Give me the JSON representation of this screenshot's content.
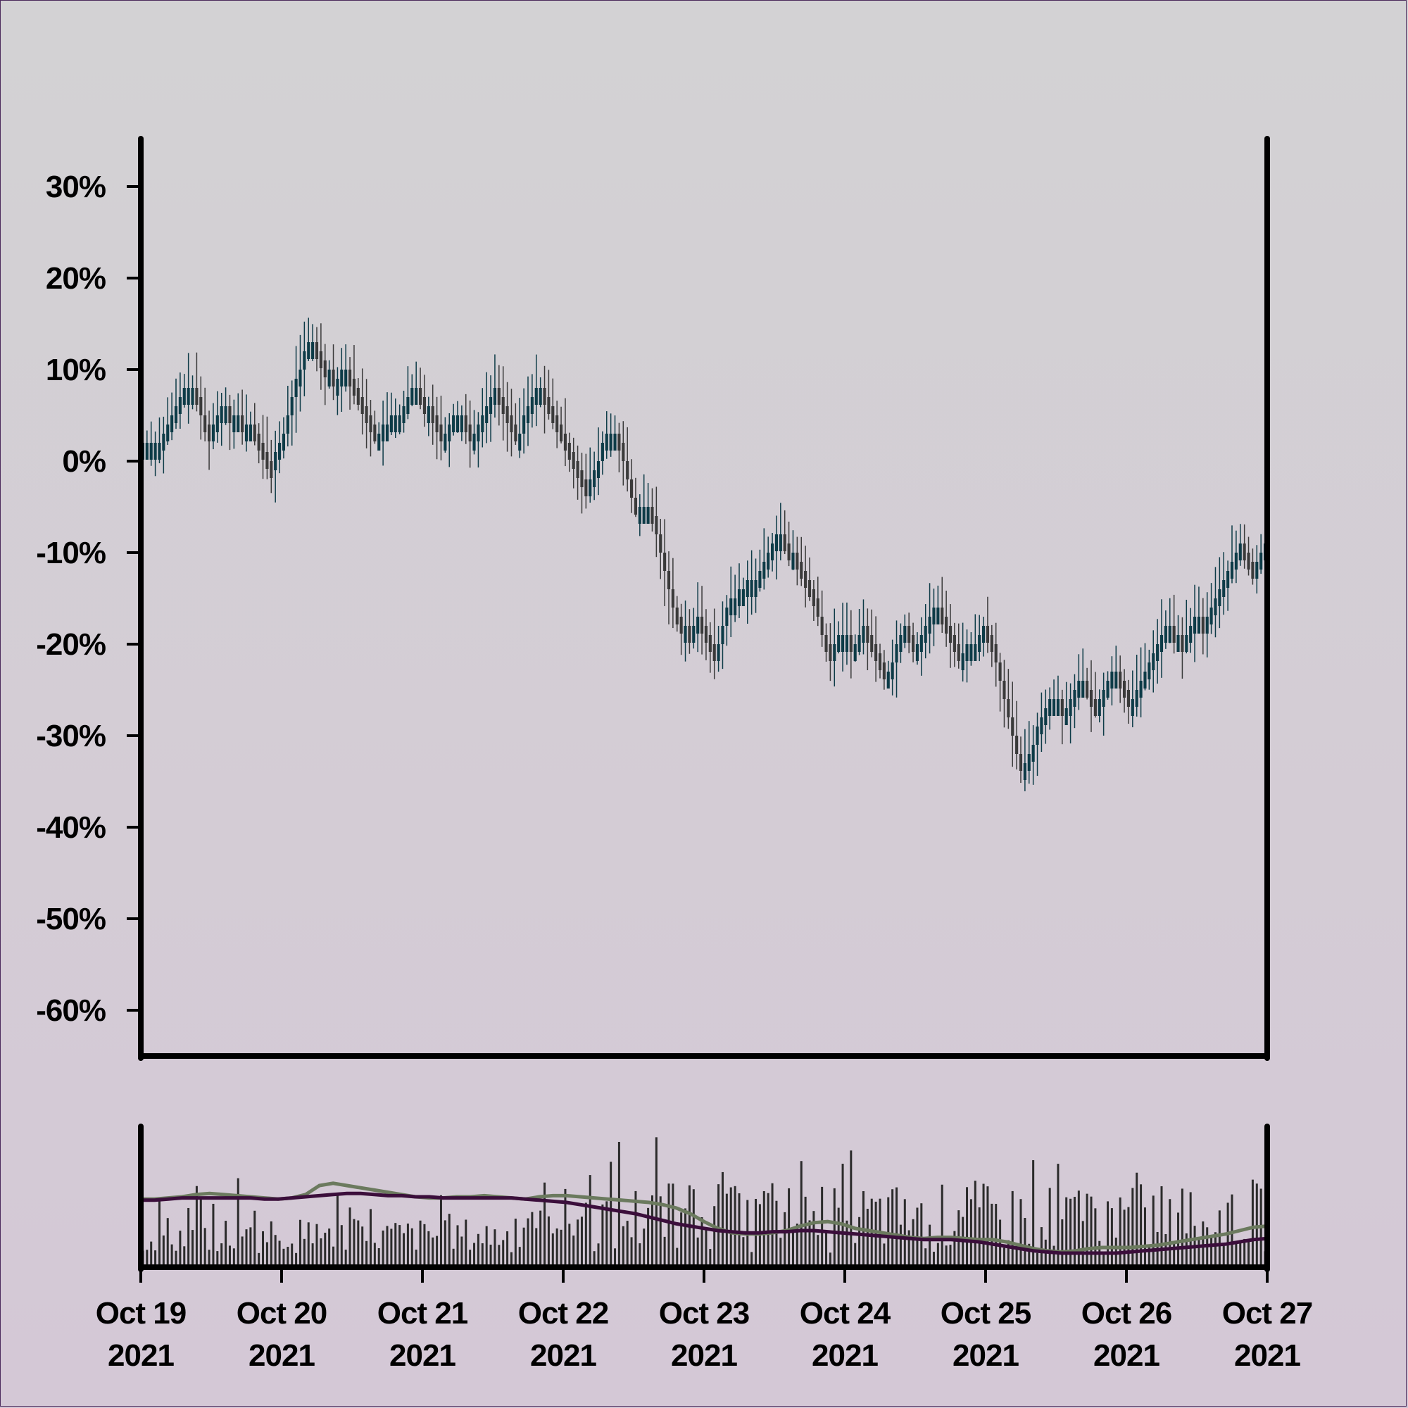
{
  "chart_data": [
    {
      "type": "candlestick",
      "title": "",
      "xlabel": "",
      "ylabel": "",
      "y_unit": "%",
      "ylim": [
        -65,
        35
      ],
      "yticks": [
        30,
        20,
        10,
        0,
        -10,
        -20,
        -30,
        -40,
        -50,
        -60
      ],
      "ytick_labels": [
        "30%",
        "20%",
        "10%",
        "0%",
        "-10%",
        "-20%",
        "-30%",
        "-40%",
        "-50%",
        "-60%"
      ],
      "xlim": [
        "2021-10-19 00:00",
        "2021-10-27 00:00"
      ],
      "xtick_labels": [
        {
          "line1": "Oct 19",
          "line2": "2021"
        },
        {
          "line1": "Oct 20",
          "line2": "2021"
        },
        {
          "line1": "Oct 21",
          "line2": "2021"
        },
        {
          "line1": "Oct 22",
          "line2": "2021"
        },
        {
          "line1": "Oct 23",
          "line2": "2021"
        },
        {
          "line1": "Oct 24",
          "line2": "2021"
        },
        {
          "line1": "Oct 25",
          "line2": "2021"
        },
        {
          "line1": "Oct 26",
          "line2": "2021"
        },
        {
          "line1": "Oct 27",
          "line2": "2021"
        }
      ],
      "bar_interval_hours": 1,
      "close_path_pct": [
        2,
        2,
        2,
        2,
        2,
        3,
        4,
        5,
        6,
        7,
        8,
        8,
        8,
        7,
        5,
        4,
        3,
        4,
        5,
        6,
        6,
        5,
        5,
        5,
        4,
        4,
        4,
        3,
        2,
        1,
        0,
        -1,
        1,
        2,
        3,
        5,
        7,
        9,
        10,
        12,
        13,
        13,
        12,
        11,
        10,
        10,
        9,
        9,
        10,
        10,
        9,
        8,
        7,
        6,
        5,
        4,
        3,
        3,
        4,
        4,
        5,
        5,
        5,
        6,
        7,
        8,
        8,
        7,
        6,
        6,
        5,
        4,
        3,
        3,
        4,
        5,
        5,
        5,
        4,
        3,
        3,
        4,
        5,
        6,
        7,
        8,
        7,
        6,
        5,
        4,
        3,
        3,
        5,
        6,
        7,
        8,
        8,
        7,
        6,
        5,
        4,
        3,
        2,
        1,
        0,
        -1,
        -2,
        -3,
        -2,
        -1,
        0,
        2,
        3,
        3,
        3,
        2,
        0,
        -2,
        -4,
        -5,
        -5,
        -5,
        -5,
        -6,
        -8,
        -10,
        -12,
        -14,
        -16,
        -17,
        -18,
        -18,
        -19,
        -18,
        -17,
        -18,
        -19,
        -20,
        -21,
        -20,
        -18,
        -16,
        -15,
        -15,
        -14,
        -14,
        -13,
        -13,
        -13,
        -12,
        -11,
        -10,
        -9,
        -8,
        -8,
        -9,
        -10,
        -10,
        -11,
        -12,
        -13,
        -14,
        -15,
        -17,
        -19,
        -20,
        -21,
        -20,
        -19,
        -19,
        -19,
        -20,
        -20,
        -19,
        -18,
        -19,
        -20,
        -21,
        -22,
        -23,
        -23,
        -22,
        -20,
        -19,
        -18,
        -19,
        -20,
        -20,
        -19,
        -18,
        -17,
        -16,
        -16,
        -17,
        -18,
        -19,
        -20,
        -21,
        -21,
        -20,
        -20,
        -20,
        -19,
        -18,
        -19,
        -20,
        -22,
        -24,
        -26,
        -28,
        -30,
        -32,
        -33,
        -33,
        -32,
        -31,
        -29,
        -28,
        -27,
        -26,
        -26,
        -26,
        -27,
        -27,
        -26,
        -25,
        -24,
        -24,
        -25,
        -26,
        -27,
        -26,
        -25,
        -24,
        -23,
        -23,
        -24,
        -25,
        -26,
        -26,
        -25,
        -24,
        -23,
        -22,
        -21,
        -20,
        -19,
        -18,
        -18,
        -19,
        -19,
        -20,
        -19,
        -18,
        -17,
        -17,
        -18,
        -17,
        -16,
        -15,
        -14,
        -13,
        -12,
        -11,
        -10,
        -9,
        -10,
        -11,
        -12,
        -11,
        -10,
        -9
      ]
    },
    {
      "type": "bar+line",
      "title": "",
      "xlabel": "",
      "ylabel": "",
      "description_of_series": "Volume bars with two moving-average lines (no legend printed)",
      "series": [
        {
          "color": "#2b2b2b",
          "kind": "bars"
        },
        {
          "color": "#6b7a5e",
          "kind": "line"
        },
        {
          "color": "#3b0e3b",
          "kind": "line"
        }
      ],
      "ma_fast_path": [
        0.48,
        0.48,
        0.49,
        0.5,
        0.52,
        0.53,
        0.52,
        0.51,
        0.5,
        0.49,
        0.48,
        0.49,
        0.52,
        0.6,
        0.62,
        0.6,
        0.58,
        0.56,
        0.54,
        0.52,
        0.5,
        0.49,
        0.49,
        0.5,
        0.5,
        0.51,
        0.5,
        0.49,
        0.48,
        0.5,
        0.51,
        0.51,
        0.5,
        0.49,
        0.48,
        0.47,
        0.46,
        0.45,
        0.43,
        0.4,
        0.35,
        0.28,
        0.22,
        0.18,
        0.17,
        0.17,
        0.18,
        0.2,
        0.24,
        0.27,
        0.28,
        0.26,
        0.22,
        0.2,
        0.18,
        0.16,
        0.14,
        0.13,
        0.14,
        0.14,
        0.13,
        0.12,
        0.12,
        0.1,
        0.07,
        0.04,
        0.02,
        0.01,
        0.02,
        0.04,
        0.05,
        0.05,
        0.05,
        0.06,
        0.07,
        0.09,
        0.11,
        0.13,
        0.15,
        0.17,
        0.2,
        0.23,
        0.24
      ],
      "ma_slow_path": [
        0.47,
        0.47,
        0.48,
        0.49,
        0.49,
        0.49,
        0.49,
        0.49,
        0.49,
        0.48,
        0.48,
        0.49,
        0.5,
        0.51,
        0.52,
        0.53,
        0.53,
        0.52,
        0.51,
        0.51,
        0.5,
        0.5,
        0.49,
        0.49,
        0.49,
        0.49,
        0.49,
        0.49,
        0.48,
        0.47,
        0.46,
        0.45,
        0.43,
        0.41,
        0.39,
        0.37,
        0.35,
        0.32,
        0.29,
        0.26,
        0.24,
        0.22,
        0.2,
        0.19,
        0.18,
        0.18,
        0.19,
        0.19,
        0.2,
        0.2,
        0.19,
        0.18,
        0.17,
        0.16,
        0.15,
        0.14,
        0.13,
        0.12,
        0.12,
        0.12,
        0.11,
        0.1,
        0.08,
        0.06,
        0.04,
        0.02,
        0.01,
        0.0,
        0.0,
        0.0,
        0.0,
        0.0,
        0.01,
        0.02,
        0.03,
        0.04,
        0.05,
        0.06,
        0.07,
        0.08,
        0.1,
        0.12,
        0.13
      ]
    }
  ]
}
